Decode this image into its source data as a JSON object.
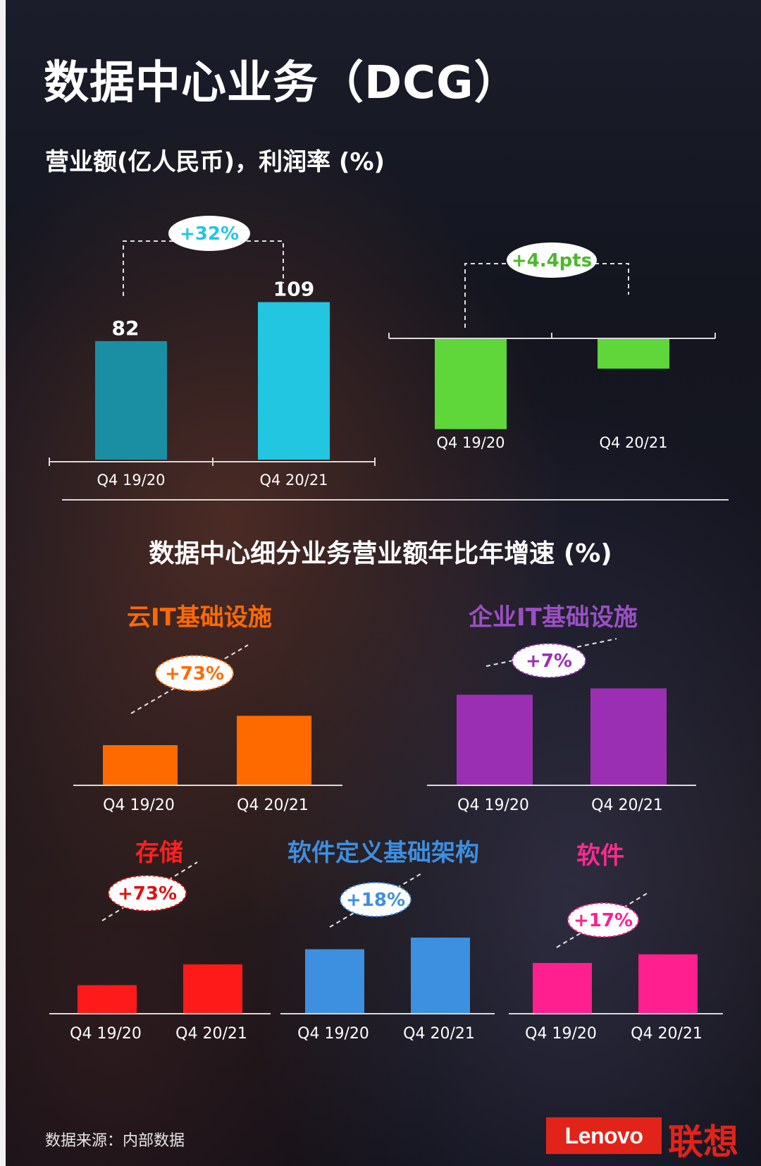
{
  "title": "数据中心业务（DCG）",
  "subtitle": "营业额(亿人民币)，利润率 (%)",
  "section_title": "数据中心细分业务营业额年比年增速 (%)",
  "source_note": "数据来源：内部数据",
  "brand": {
    "logo_text": "Lenovo",
    "logo_cn": "联想"
  },
  "colors": {
    "revenue_19": "#1a8fa3",
    "revenue_20": "#22c6e0",
    "margin": "#5fd639",
    "cloud_it": "#ff6a00",
    "enterprise_it": "#9b2fb4",
    "storage": "#ff1a1a",
    "sdi": "#3d8fe0",
    "software": "#ff1f8f"
  },
  "segments": {
    "cloud_it": "云IT基础设施",
    "enterprise_it": "企业IT基础设施",
    "storage": "存储",
    "sdi": "软件定义基础架构",
    "software": "软件"
  },
  "chart_data": [
    {
      "id": "revenue",
      "type": "bar",
      "categories": [
        "Q4 19/20",
        "Q4 20/21"
      ],
      "values": [
        82,
        109
      ],
      "data_labels": [
        "82",
        "109"
      ],
      "annotation": "+32%"
    },
    {
      "id": "margin",
      "type": "bar",
      "categories": [
        "Q4 19/20",
        "Q4 20/21"
      ],
      "values": [
        -6.6,
        -2.2
      ],
      "annotation": "+4.4pts"
    },
    {
      "id": "cloud_it",
      "type": "bar",
      "categories": [
        "Q4 19/20",
        "Q4 20/21"
      ],
      "values": [
        100,
        173
      ],
      "annotation": "+73%"
    },
    {
      "id": "enterprise_it",
      "type": "bar",
      "categories": [
        "Q4 19/20",
        "Q4 20/21"
      ],
      "values": [
        100,
        107
      ],
      "annotation": "+7%"
    },
    {
      "id": "storage",
      "type": "bar",
      "categories": [
        "Q4 19/20",
        "Q4 20/21"
      ],
      "values": [
        100,
        173
      ],
      "annotation": "+73%"
    },
    {
      "id": "sdi",
      "type": "bar",
      "categories": [
        "Q4 19/20",
        "Q4 20/21"
      ],
      "values": [
        100,
        118
      ],
      "annotation": "+18%"
    },
    {
      "id": "software",
      "type": "bar",
      "categories": [
        "Q4 19/20",
        "Q4 20/21"
      ],
      "values": [
        100,
        117
      ],
      "annotation": "+17%"
    }
  ]
}
